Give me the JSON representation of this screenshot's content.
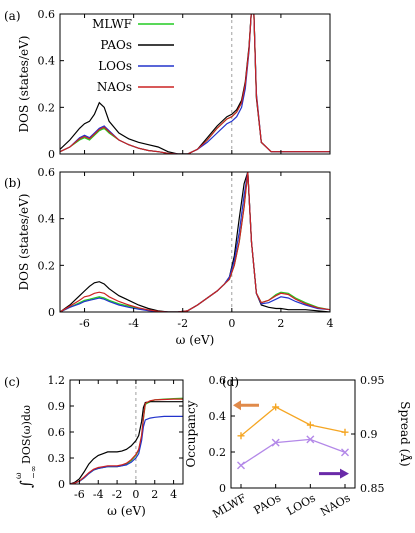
{
  "chart_data": [
    {
      "panel": "(a)",
      "type": "line",
      "xlim": [
        -7,
        4
      ],
      "ylim": [
        0,
        0.6
      ],
      "xticks": [
        -6,
        -4,
        -2,
        0,
        2,
        4
      ],
      "yticks": [
        0,
        0.2,
        0.4,
        0.6
      ],
      "xtick_labels_shown": false,
      "ylabel": "DOS (states/eV)",
      "xlabel": "",
      "legend": "top-left",
      "vline_at": 0,
      "series": [
        {
          "name": "MLWF",
          "color": "#22cc22",
          "x": [
            -7,
            -6.6,
            -6.2,
            -6.0,
            -5.8,
            -5.6,
            -5.4,
            -5.2,
            -5.0,
            -4.6,
            -4.2,
            -3.8,
            -3.4,
            -3.0,
            -2.6,
            -2.2,
            -1.8,
            -1.4,
            -1.0,
            -0.6,
            -0.2,
            0.0,
            0.2,
            0.4,
            0.55,
            0.7,
            0.8,
            0.9,
            1.0,
            1.2,
            1.6,
            2.0,
            2.6,
            3.2,
            4.0
          ],
          "y": [
            0.01,
            0.03,
            0.06,
            0.07,
            0.06,
            0.08,
            0.1,
            0.11,
            0.09,
            0.06,
            0.04,
            0.025,
            0.015,
            0.01,
            0.003,
            0.0,
            0.0,
            0.02,
            0.06,
            0.11,
            0.15,
            0.16,
            0.18,
            0.22,
            0.3,
            0.45,
            0.62,
            0.6,
            0.25,
            0.05,
            0.01,
            0.01,
            0.01,
            0.01,
            0.01
          ]
        },
        {
          "name": "PAOs",
          "color": "#000000",
          "x": [
            -7,
            -6.6,
            -6.2,
            -6.0,
            -5.8,
            -5.6,
            -5.4,
            -5.2,
            -5.0,
            -4.6,
            -4.2,
            -3.8,
            -3.4,
            -3.0,
            -2.6,
            -2.2,
            -1.8,
            -1.4,
            -1.0,
            -0.6,
            -0.2,
            0.0,
            0.2,
            0.4,
            0.55,
            0.7,
            0.8,
            0.9,
            1.0,
            1.2,
            1.6,
            2.0,
            2.6,
            3.2,
            4.0
          ],
          "y": [
            0.02,
            0.06,
            0.11,
            0.13,
            0.14,
            0.17,
            0.22,
            0.2,
            0.14,
            0.09,
            0.065,
            0.05,
            0.04,
            0.03,
            0.01,
            0.0,
            0.0,
            0.02,
            0.07,
            0.12,
            0.16,
            0.17,
            0.19,
            0.23,
            0.31,
            0.46,
            0.62,
            0.6,
            0.24,
            0.05,
            0.01,
            0.01,
            0.01,
            0.01,
            0.01
          ]
        },
        {
          "name": "LOOs",
          "color": "#2233cc",
          "x": [
            -7,
            -6.6,
            -6.2,
            -6.0,
            -5.8,
            -5.6,
            -5.4,
            -5.2,
            -5.0,
            -4.6,
            -4.2,
            -3.8,
            -3.4,
            -3.0,
            -2.6,
            -2.2,
            -1.8,
            -1.4,
            -1.0,
            -0.6,
            -0.2,
            0.0,
            0.2,
            0.4,
            0.55,
            0.7,
            0.8,
            0.9,
            1.0,
            1.2,
            1.6,
            2.0,
            2.6,
            3.2,
            4.0
          ],
          "y": [
            0.01,
            0.03,
            0.07,
            0.08,
            0.07,
            0.09,
            0.11,
            0.12,
            0.1,
            0.06,
            0.04,
            0.025,
            0.015,
            0.01,
            0.003,
            0.0,
            0.0,
            0.02,
            0.05,
            0.09,
            0.13,
            0.14,
            0.16,
            0.2,
            0.28,
            0.44,
            0.62,
            0.6,
            0.26,
            0.05,
            0.01,
            0.01,
            0.01,
            0.01,
            0.01
          ]
        },
        {
          "name": "NAOs",
          "color": "#cc2222",
          "x": [
            -7,
            -6.6,
            -6.2,
            -6.0,
            -5.8,
            -5.6,
            -5.4,
            -5.2,
            -5.0,
            -4.6,
            -4.2,
            -3.8,
            -3.4,
            -3.0,
            -2.6,
            -2.2,
            -1.8,
            -1.4,
            -1.0,
            -0.6,
            -0.2,
            0.0,
            0.2,
            0.4,
            0.55,
            0.7,
            0.8,
            0.9,
            1.0,
            1.2,
            1.6,
            2.0,
            2.6,
            3.2,
            4.0
          ],
          "y": [
            0.01,
            0.03,
            0.065,
            0.075,
            0.065,
            0.085,
            0.105,
            0.115,
            0.095,
            0.06,
            0.04,
            0.025,
            0.015,
            0.01,
            0.003,
            0.0,
            0.0,
            0.02,
            0.06,
            0.11,
            0.15,
            0.16,
            0.18,
            0.22,
            0.3,
            0.45,
            0.62,
            0.6,
            0.25,
            0.05,
            0.01,
            0.01,
            0.01,
            0.01,
            0.01
          ]
        }
      ]
    },
    {
      "panel": "(b)",
      "type": "line",
      "xlim": [
        -7,
        4
      ],
      "ylim": [
        0,
        0.6
      ],
      "xticks": [
        -6,
        -4,
        -2,
        0,
        2,
        4
      ],
      "yticks": [
        0,
        0.2,
        0.4,
        0.6
      ],
      "xtick_labels_shown": true,
      "ylabel": "DOS (states/eV)",
      "xlabel": "ω (eV)",
      "vline_at": 0,
      "series": [
        {
          "name": "MLWF",
          "color": "#22cc22",
          "x": [
            -7,
            -6.6,
            -6.2,
            -6.0,
            -5.8,
            -5.6,
            -5.4,
            -5.2,
            -5.0,
            -4.6,
            -4.2,
            -3.8,
            -3.4,
            -3.0,
            -2.6,
            -2.2,
            -1.8,
            -1.4,
            -1.0,
            -0.6,
            -0.3,
            -0.1,
            0.1,
            0.3,
            0.5,
            0.65,
            0.8,
            1.0,
            1.2,
            1.5,
            1.8,
            2.0,
            2.3,
            2.6,
            3.0,
            3.5,
            4.0
          ],
          "y": [
            0.0,
            0.02,
            0.04,
            0.05,
            0.055,
            0.06,
            0.065,
            0.06,
            0.05,
            0.035,
            0.025,
            0.015,
            0.008,
            0.003,
            0.0,
            0.0,
            0.005,
            0.03,
            0.06,
            0.09,
            0.12,
            0.14,
            0.2,
            0.3,
            0.45,
            0.6,
            0.3,
            0.08,
            0.04,
            0.05,
            0.075,
            0.085,
            0.08,
            0.06,
            0.04,
            0.02,
            0.01
          ]
        },
        {
          "name": "PAOs",
          "color": "#000000",
          "x": [
            -7,
            -6.6,
            -6.2,
            -6.0,
            -5.8,
            -5.6,
            -5.4,
            -5.2,
            -5.0,
            -4.6,
            -4.2,
            -3.8,
            -3.4,
            -3.0,
            -2.6,
            -2.2,
            -1.8,
            -1.4,
            -1.0,
            -0.6,
            -0.3,
            -0.1,
            0.1,
            0.3,
            0.5,
            0.65,
            0.8,
            1.0,
            1.2,
            1.5,
            1.8,
            2.0,
            2.3,
            2.6,
            3.0,
            3.5,
            4.0
          ],
          "y": [
            0.0,
            0.03,
            0.07,
            0.09,
            0.11,
            0.125,
            0.13,
            0.12,
            0.1,
            0.07,
            0.05,
            0.03,
            0.015,
            0.005,
            0.0,
            0.0,
            0.005,
            0.03,
            0.06,
            0.09,
            0.12,
            0.15,
            0.24,
            0.4,
            0.55,
            0.6,
            0.3,
            0.08,
            0.03,
            0.02,
            0.015,
            0.015,
            0.01,
            0.01,
            0.01,
            0.005,
            0.0
          ]
        },
        {
          "name": "LOOs",
          "color": "#2233cc",
          "x": [
            -7,
            -6.6,
            -6.2,
            -6.0,
            -5.8,
            -5.6,
            -5.4,
            -5.2,
            -5.0,
            -4.6,
            -4.2,
            -3.8,
            -3.4,
            -3.0,
            -2.6,
            -2.2,
            -1.8,
            -1.4,
            -1.0,
            -0.6,
            -0.3,
            -0.1,
            0.1,
            0.3,
            0.5,
            0.65,
            0.8,
            1.0,
            1.2,
            1.5,
            1.8,
            2.0,
            2.3,
            2.6,
            3.0,
            3.5,
            4.0
          ],
          "y": [
            0.0,
            0.02,
            0.035,
            0.045,
            0.05,
            0.055,
            0.06,
            0.055,
            0.045,
            0.03,
            0.02,
            0.012,
            0.006,
            0.002,
            0.0,
            0.0,
            0.005,
            0.03,
            0.06,
            0.09,
            0.12,
            0.15,
            0.22,
            0.34,
            0.5,
            0.6,
            0.3,
            0.08,
            0.035,
            0.04,
            0.055,
            0.065,
            0.06,
            0.045,
            0.03,
            0.015,
            0.01
          ]
        },
        {
          "name": "NAOs",
          "color": "#cc2222",
          "x": [
            -7,
            -6.6,
            -6.2,
            -6.0,
            -5.8,
            -5.6,
            -5.4,
            -5.2,
            -5.0,
            -4.6,
            -4.2,
            -3.8,
            -3.4,
            -3.0,
            -2.6,
            -2.2,
            -1.8,
            -1.4,
            -1.0,
            -0.6,
            -0.3,
            -0.1,
            0.1,
            0.3,
            0.5,
            0.65,
            0.8,
            1.0,
            1.2,
            1.5,
            1.8,
            2.0,
            2.3,
            2.6,
            3.0,
            3.5,
            4.0
          ],
          "y": [
            0.0,
            0.025,
            0.05,
            0.065,
            0.07,
            0.08,
            0.085,
            0.08,
            0.065,
            0.045,
            0.03,
            0.018,
            0.009,
            0.003,
            0.0,
            0.0,
            0.005,
            0.03,
            0.06,
            0.09,
            0.12,
            0.14,
            0.2,
            0.3,
            0.45,
            0.6,
            0.3,
            0.08,
            0.04,
            0.05,
            0.07,
            0.08,
            0.075,
            0.055,
            0.035,
            0.018,
            0.01
          ]
        }
      ]
    },
    {
      "panel": "(c)",
      "type": "line",
      "xlim": [
        -7,
        5
      ],
      "ylim": [
        0,
        1.2
      ],
      "xticks": [
        -6,
        -4,
        -2,
        0,
        2,
        4
      ],
      "yticks": [
        0,
        0.3,
        0.6,
        0.9,
        1.2
      ],
      "ylabel": "∫_{-∞}^{ω} DOS(ω)dω",
      "ylabel_parts": {
        "integral": "∫",
        "lower": "−∞",
        "upper": "ω",
        "body": "DOS(ω)dω"
      },
      "xlabel": "ω (eV)",
      "vline_at": 0,
      "series": [
        {
          "name": "MLWF",
          "color": "#22cc22",
          "x": [
            -7,
            -6.5,
            -6,
            -5.5,
            -5,
            -4.5,
            -4,
            -3.5,
            -3,
            -2.5,
            -2,
            -1.5,
            -1,
            -0.5,
            0,
            0.3,
            0.6,
            0.8,
            1.0,
            1.5,
            2,
            3,
            4,
            5
          ],
          "y": [
            0.0,
            0.01,
            0.03,
            0.07,
            0.12,
            0.16,
            0.18,
            0.19,
            0.2,
            0.2,
            0.2,
            0.21,
            0.23,
            0.27,
            0.33,
            0.39,
            0.55,
            0.75,
            0.92,
            0.95,
            0.97,
            0.98,
            0.985,
            0.99
          ]
        },
        {
          "name": "PAOs",
          "color": "#000000",
          "x": [
            -7,
            -6.5,
            -6,
            -5.5,
            -5,
            -4.5,
            -4,
            -3.5,
            -3,
            -2.5,
            -2,
            -1.5,
            -1,
            -0.5,
            0,
            0.3,
            0.6,
            0.8,
            1.0,
            1.5,
            2,
            3,
            4,
            5
          ],
          "y": [
            0.0,
            0.02,
            0.06,
            0.14,
            0.23,
            0.29,
            0.33,
            0.35,
            0.37,
            0.37,
            0.37,
            0.38,
            0.4,
            0.44,
            0.5,
            0.56,
            0.72,
            0.88,
            0.94,
            0.95,
            0.95,
            0.95,
            0.95,
            0.95
          ]
        },
        {
          "name": "LOOs",
          "color": "#2233cc",
          "x": [
            -7,
            -6.5,
            -6,
            -5.5,
            -5,
            -4.5,
            -4,
            -3.5,
            -3,
            -2.5,
            -2,
            -1.5,
            -1,
            -0.5,
            0,
            0.3,
            0.6,
            0.8,
            1.0,
            1.5,
            2,
            3,
            4,
            5
          ],
          "y": [
            0.0,
            0.01,
            0.03,
            0.07,
            0.12,
            0.16,
            0.18,
            0.19,
            0.2,
            0.2,
            0.2,
            0.21,
            0.22,
            0.25,
            0.3,
            0.35,
            0.5,
            0.66,
            0.74,
            0.76,
            0.77,
            0.78,
            0.78,
            0.78
          ]
        },
        {
          "name": "NAOs",
          "color": "#cc2222",
          "x": [
            -7,
            -6.5,
            -6,
            -5.5,
            -5,
            -4.5,
            -4,
            -3.5,
            -3,
            -2.5,
            -2,
            -1.5,
            -1,
            -0.5,
            0,
            0.3,
            0.6,
            0.8,
            1.0,
            1.5,
            2,
            3,
            4,
            5
          ],
          "y": [
            0.0,
            0.01,
            0.035,
            0.08,
            0.13,
            0.17,
            0.19,
            0.2,
            0.21,
            0.21,
            0.21,
            0.22,
            0.24,
            0.28,
            0.34,
            0.4,
            0.56,
            0.76,
            0.93,
            0.96,
            0.97,
            0.975,
            0.98,
            0.98
          ]
        }
      ]
    },
    {
      "panel": "(d)",
      "type": "line",
      "categories": [
        "MLWF",
        "PAOs",
        "LOOs",
        "NAOs"
      ],
      "ylim": [
        0,
        0.6
      ],
      "yticks": [
        0,
        0.2,
        0.4,
        0.6
      ],
      "ylabel": "Occupancy",
      "y2lim": [
        0.85,
        0.95
      ],
      "y2ticks": [
        0.85,
        0.9,
        0.95
      ],
      "y2label": "Spread (Å)",
      "arrow_occupancy_color": "#e08a4a",
      "arrow_spread_color": "#6a2aa8",
      "series": [
        {
          "name": "Occupancy",
          "axis": "left",
          "color": "#f5a623",
          "marker": "plus",
          "values": [
            0.29,
            0.45,
            0.35,
            0.31
          ]
        },
        {
          "name": "Spread",
          "axis": "right",
          "color": "#b388e8",
          "marker": "cross",
          "values": [
            0.871,
            0.892,
            0.895,
            0.883
          ]
        }
      ]
    }
  ]
}
